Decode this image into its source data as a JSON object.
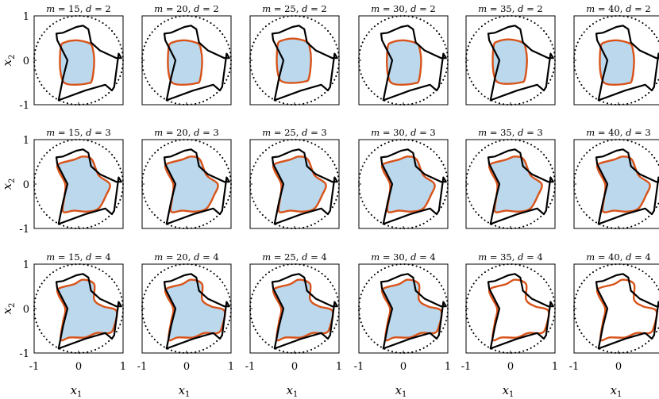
{
  "chart_data": {
    "type": "line",
    "description_free": true,
    "rows": 3,
    "cols": 6,
    "xlabel": "x",
    "xlabel_sub": "1",
    "ylabel": "x",
    "ylabel_sub": "2",
    "xlim": [
      -1,
      1
    ],
    "ylim": [
      -1,
      1
    ],
    "xticks": [
      "-1",
      "0",
      "1"
    ],
    "yticks": [
      "1",
      "0",
      "-1"
    ],
    "grid": false,
    "colors": {
      "boundary": "#000000",
      "approx": "#d95319",
      "fill": "#bcd8ec",
      "circle": "#000000"
    },
    "panels": [
      {
        "m": "15",
        "d": "2",
        "filled": true,
        "dx": 0.0,
        "dy": 0.0
      },
      {
        "m": "20",
        "d": "2",
        "filled": true,
        "dx": 0.0,
        "dy": 0.0
      },
      {
        "m": "25",
        "d": "2",
        "filled": true,
        "dx": 0.02,
        "dy": 0.04
      },
      {
        "m": "30",
        "d": "2",
        "filled": true,
        "dx": 0.05,
        "dy": 0.0
      },
      {
        "m": "35",
        "d": "2",
        "filled": true,
        "dx": 0.02,
        "dy": 0.02
      },
      {
        "m": "40",
        "d": "2",
        "filled": true,
        "dx": 0.0,
        "dy": 0.0
      },
      {
        "m": "15",
        "d": "3",
        "filled": true,
        "dx": 0.0,
        "dy": 0.0
      },
      {
        "m": "20",
        "d": "3",
        "filled": true,
        "dx": 0.0,
        "dy": 0.0
      },
      {
        "m": "25",
        "d": "3",
        "filled": true,
        "dx": 0.0,
        "dy": 0.0
      },
      {
        "m": "30",
        "d": "3",
        "filled": true,
        "dx": 0.0,
        "dy": 0.0
      },
      {
        "m": "35",
        "d": "3",
        "filled": true,
        "dx": 0.0,
        "dy": 0.0
      },
      {
        "m": "40",
        "d": "3",
        "filled": true,
        "dx": 0.0,
        "dy": 0.0
      },
      {
        "m": "15",
        "d": "4",
        "filled": true,
        "dx": 0.0,
        "dy": 0.0
      },
      {
        "m": "20",
        "d": "4",
        "filled": true,
        "dx": 0.0,
        "dy": 0.0
      },
      {
        "m": "25",
        "d": "4",
        "filled": true,
        "dx": 0.0,
        "dy": 0.0
      },
      {
        "m": "30",
        "d": "4",
        "filled": true,
        "dx": 0.0,
        "dy": 0.0
      },
      {
        "m": "35",
        "d": "4",
        "filled": false,
        "dx": 0.0,
        "dy": 0.0
      },
      {
        "m": "40",
        "d": "4",
        "filled": false,
        "dx": 0.0,
        "dy": 0.0
      }
    ],
    "unit_circle_radius": 1.0,
    "boundary_curve": [
      [
        -0.5,
        0.6
      ],
      [
        -0.35,
        0.62
      ],
      [
        -0.05,
        0.75
      ],
      [
        0.1,
        0.78
      ],
      [
        0.22,
        0.7
      ],
      [
        0.28,
        0.4
      ],
      [
        0.48,
        0.22
      ],
      [
        0.85,
        0.05
      ],
      [
        0.96,
        0.05
      ],
      [
        0.9,
        0.15
      ],
      [
        0.8,
        -0.6
      ],
      [
        0.75,
        -0.68
      ],
      [
        0.6,
        -0.55
      ],
      [
        0.15,
        -0.68
      ],
      [
        -0.45,
        -0.9
      ],
      [
        -0.35,
        -0.4
      ],
      [
        -0.25,
        0.0
      ],
      [
        -0.48,
        0.45
      ]
    ],
    "approx_curves": {
      "2": [
        [
          -0.32,
          0.4
        ],
        [
          -0.05,
          0.45
        ],
        [
          0.25,
          0.38
        ],
        [
          0.32,
          0.25
        ],
        [
          0.35,
          -0.05
        ],
        [
          0.3,
          -0.45
        ],
        [
          0.2,
          -0.52
        ],
        [
          -0.1,
          -0.55
        ],
        [
          -0.3,
          -0.52
        ],
        [
          -0.38,
          -0.4
        ],
        [
          -0.42,
          -0.1
        ],
        [
          -0.4,
          0.3
        ]
      ],
      "3": [
        [
          -0.45,
          0.45
        ],
        [
          -0.1,
          0.55
        ],
        [
          0.1,
          0.62
        ],
        [
          0.3,
          0.55
        ],
        [
          0.45,
          0.2
        ],
        [
          0.7,
          0.0
        ],
        [
          0.62,
          -0.25
        ],
        [
          0.45,
          -0.55
        ],
        [
          0.2,
          -0.62
        ],
        [
          -0.1,
          -0.6
        ],
        [
          -0.35,
          -0.62
        ],
        [
          -0.32,
          -0.3
        ],
        [
          -0.3,
          0.0
        ],
        [
          -0.45,
          0.3
        ]
      ],
      "4": [
        [
          -0.45,
          0.45
        ],
        [
          -0.1,
          0.55
        ],
        [
          0.1,
          0.65
        ],
        [
          0.35,
          0.55
        ],
        [
          0.35,
          0.2
        ],
        [
          0.55,
          0.05
        ],
        [
          0.85,
          -0.05
        ],
        [
          0.8,
          -0.4
        ],
        [
          0.7,
          -0.55
        ],
        [
          0.4,
          -0.55
        ],
        [
          0.15,
          -0.65
        ],
        [
          -0.2,
          -0.65
        ],
        [
          -0.4,
          -0.7
        ],
        [
          -0.35,
          -0.3
        ],
        [
          -0.3,
          0.0
        ],
        [
          -0.45,
          0.3
        ]
      ]
    }
  }
}
